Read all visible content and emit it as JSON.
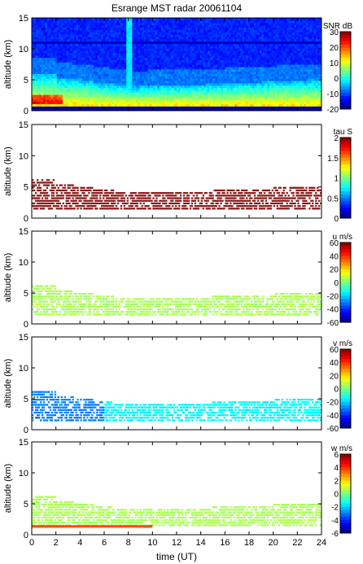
{
  "figure": {
    "title": "Esrange MST radar 20061104",
    "xlabel": "time (UT)"
  },
  "chart_data": [
    {
      "type": "heatmap",
      "panel": 1,
      "ylabel": "altitude (km)",
      "colorbar_label": "SNR dB",
      "colorbar_ticks": [
        30,
        20,
        10,
        0,
        -10,
        -20
      ],
      "colorbar_range": [
        -20,
        30
      ],
      "x_range": [
        0,
        24
      ],
      "y_range": [
        0,
        15
      ],
      "x_ticks": [
        0,
        2,
        4,
        6,
        8,
        10,
        12,
        14,
        16,
        18,
        20,
        22,
        24
      ],
      "y_ticks": [
        0,
        5,
        10,
        15
      ],
      "field": "snr"
    },
    {
      "type": "heatmap",
      "panel": 2,
      "ylabel": "altitude (km)",
      "colorbar_label": "tau S",
      "colorbar_ticks": [
        2,
        1.5,
        1,
        0.5,
        0
      ],
      "colorbar_range": [
        0,
        2
      ],
      "x_range": [
        0,
        24
      ],
      "y_range": [
        0,
        15
      ],
      "x_ticks": [
        0,
        2,
        4,
        6,
        8,
        10,
        12,
        14,
        16,
        18,
        20,
        22,
        24
      ],
      "y_ticks": [
        0,
        5,
        10,
        15
      ],
      "field": "tau",
      "typical_value": 2.0
    },
    {
      "type": "heatmap",
      "panel": 3,
      "ylabel": "altitude (km)",
      "colorbar_label": "u m/s",
      "colorbar_ticks": [
        60,
        40,
        20,
        0,
        -20,
        -40,
        -60
      ],
      "colorbar_range": [
        -60,
        60
      ],
      "x_range": [
        0,
        24
      ],
      "y_range": [
        0,
        15
      ],
      "x_ticks": [
        0,
        2,
        4,
        6,
        8,
        10,
        12,
        14,
        16,
        18,
        20,
        22,
        24
      ],
      "y_ticks": [
        0,
        5,
        10,
        15
      ],
      "field": "u",
      "typical_value": 5
    },
    {
      "type": "heatmap",
      "panel": 4,
      "ylabel": "altitude (km)",
      "colorbar_label": "v m/s",
      "colorbar_ticks": [
        60,
        40,
        20,
        0,
        -20,
        -40,
        -60
      ],
      "colorbar_range": [
        -60,
        60
      ],
      "x_range": [
        0,
        24
      ],
      "y_range": [
        0,
        15
      ],
      "x_ticks": [
        0,
        2,
        4,
        6,
        8,
        10,
        12,
        14,
        16,
        18,
        20,
        22,
        24
      ],
      "y_ticks": [
        0,
        5,
        10,
        15
      ],
      "field": "v",
      "typical_value": -25
    },
    {
      "type": "heatmap",
      "panel": 5,
      "ylabel": "altitude (km)",
      "colorbar_label": "w m/s",
      "colorbar_ticks": [
        6,
        4,
        2,
        0,
        -2,
        -4,
        -6
      ],
      "colorbar_range": [
        -6,
        6
      ],
      "x_range": [
        0,
        24
      ],
      "y_range": [
        0,
        15
      ],
      "x_ticks": [
        0,
        2,
        4,
        6,
        8,
        10,
        12,
        14,
        16,
        18,
        20,
        22,
        24
      ],
      "y_ticks": [
        0,
        5,
        10,
        15
      ],
      "field": "w",
      "typical_value": 0.5
    }
  ]
}
